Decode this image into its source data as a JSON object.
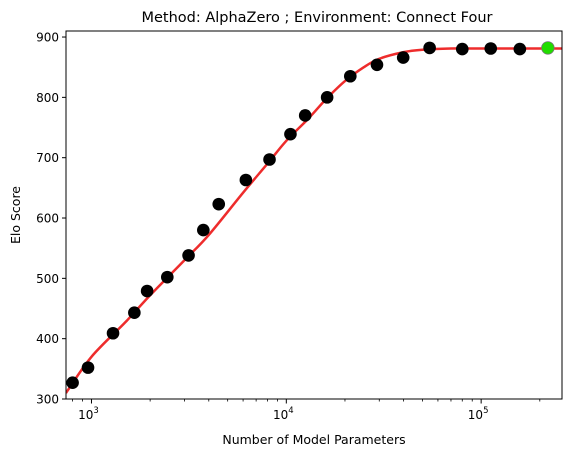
{
  "chart_data": {
    "type": "scatter",
    "title": "Method: AlphaZero ; Environment: Connect Four",
    "xlabel": "Number of Model Parameters",
    "ylabel": "Elo Score",
    "xscale": "log",
    "xlim": [
      740,
      260000
    ],
    "ylim": [
      300,
      910
    ],
    "yticks": [
      300,
      400,
      500,
      600,
      700,
      800,
      900
    ],
    "xticks": [
      {
        "value": 1000,
        "base": "10",
        "exp": "3"
      },
      {
        "value": 10000,
        "base": "10",
        "exp": "4"
      },
      {
        "value": 100000,
        "base": "10",
        "exp": "5"
      }
    ],
    "grid": false,
    "series": [
      {
        "role": "points",
        "color": "#000000",
        "x": [
          800,
          960,
          1290,
          1660,
          1930,
          2450,
          3150,
          3750,
          4500,
          6200,
          8200,
          10500,
          12500,
          16200,
          21300,
          29200,
          39800,
          54400,
          80000,
          112000,
          158000
        ],
        "y": [
          327,
          352,
          409,
          443,
          479,
          502,
          538,
          580,
          623,
          663,
          697,
          739,
          770,
          800,
          835,
          854,
          866,
          882,
          880,
          881,
          880
        ]
      },
      {
        "role": "highlighted point",
        "color": "#22dd00",
        "x": [
          220000
        ],
        "y": [
          882
        ]
      },
      {
        "role": "fit",
        "color": "#ee2c2c",
        "x": [
          740,
          1000,
          1500,
          2000,
          3000,
          4000,
          6000,
          8000,
          10000,
          13000,
          16000,
          20000,
          25000,
          30000,
          40000,
          50000,
          70000,
          100000,
          150000,
          260000
        ],
        "y": [
          310,
          370,
          428,
          472,
          530,
          572,
          642,
          690,
          728,
          765,
          797,
          827,
          850,
          864,
          875,
          879,
          881,
          881,
          881,
          881
        ]
      }
    ]
  }
}
